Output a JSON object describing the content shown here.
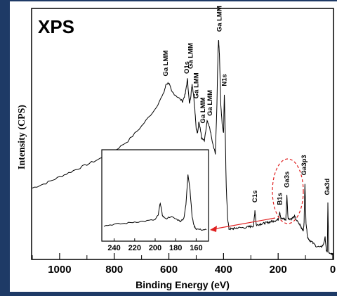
{
  "colors": {
    "background": "#1e3a66",
    "panel": "#ffffff",
    "trace": "#000000",
    "highlight": "#e02020"
  },
  "chart_data": {
    "type": "line",
    "title": "XPS",
    "xlabel": "Binding Energy (eV)",
    "ylabel": "Intensity (CPS)",
    "x_reversed": true,
    "xlim": [
      1100,
      0
    ],
    "ylim": [
      0,
      100
    ],
    "x_ticks": [
      "1000",
      "800",
      "600",
      "400",
      "200",
      "0"
    ],
    "x_tick_values": [
      1000,
      800,
      600,
      400,
      200,
      0
    ],
    "series": [
      {
        "x": [
          1100,
          1050,
          1000,
          950,
          900,
          850,
          800,
          750,
          700,
          650,
          620,
          610,
          600,
          590,
          570,
          550,
          540,
          532,
          525,
          520,
          515,
          510,
          505,
          500,
          495,
          490,
          485,
          480,
          470,
          460,
          450,
          440,
          430,
          425,
          420,
          418,
          415,
          410,
          405,
          400,
          397,
          394,
          390,
          385,
          380,
          370,
          360,
          350,
          330,
          310,
          300,
          290,
          285,
          280,
          270,
          260,
          250,
          240,
          230,
          220,
          210,
          200,
          194,
          190,
          180,
          172,
          168,
          164,
          160,
          150,
          140,
          130,
          120,
          115,
          108,
          105,
          102,
          98,
          92,
          85,
          75,
          60,
          45,
          35,
          28,
          24,
          20,
          18,
          15,
          10,
          5,
          0
        ],
        "y": [
          28,
          30,
          32.5,
          35,
          37.5,
          40,
          43,
          47,
          53,
          60,
          66,
          70,
          70.5,
          67,
          65,
          63,
          66,
          72,
          62,
          65,
          70,
          66,
          60,
          52,
          50,
          55,
          52,
          48,
          47,
          55,
          52,
          46,
          42,
          58,
          84,
          88,
          82,
          62,
          54,
          50,
          66,
          52,
          28,
          16,
          11.5,
          11.5,
          11.7,
          11.9,
          12,
          12.2,
          12.5,
          12.7,
          19,
          13,
          13.3,
          13.6,
          13.8,
          14,
          14.3,
          14.6,
          14.9,
          15.2,
          18.5,
          15.5,
          15.7,
          15,
          25,
          16,
          15.5,
          15.7,
          16.5,
          14.5,
          13,
          12,
          11,
          14,
          30,
          14,
          8,
          7,
          6,
          4.5,
          4,
          5,
          8,
          3,
          2,
          22,
          2,
          1.8,
          1.6,
          1.5
        ]
      }
    ],
    "peak_labels": [
      {
        "label": "Ga LMM",
        "x": 612,
        "y": 72
      },
      {
        "label": "O1s",
        "x": 535,
        "y": 73
      },
      {
        "label": "Ga LMM",
        "x": 520,
        "y": 75
      },
      {
        "label": "Ga LMM",
        "x": 500,
        "y": 63
      },
      {
        "label": "Ga LMM",
        "x": 475,
        "y": 53
      },
      {
        "label": "Ga LMM",
        "x": 450,
        "y": 56
      },
      {
        "label": "Ga LMM",
        "x": 415,
        "y": 90
      },
      {
        "label": "N1s",
        "x": 397,
        "y": 68
      },
      {
        "label": "C1s",
        "x": 285,
        "y": 21
      },
      {
        "label": "B1s",
        "x": 194,
        "y": 20
      },
      {
        "label": "Ga3s",
        "x": 168,
        "y": 27
      },
      {
        "label": "Ga3p3",
        "x": 105,
        "y": 32
      },
      {
        "label": "Ga3d",
        "x": 20,
        "y": 24
      }
    ],
    "inset": {
      "xlim": [
        250,
        150
      ],
      "x_ticks": [
        "240",
        "220",
        "200",
        "180",
        "160"
      ],
      "x_tick_values": [
        240,
        220,
        200,
        180,
        160
      ],
      "x": [
        250,
        240,
        230,
        220,
        210,
        200,
        197,
        195,
        193,
        190,
        185,
        180,
        175,
        172,
        170,
        168,
        166,
        164,
        162,
        160,
        155,
        150
      ],
      "y": [
        8,
        10,
        11,
        13,
        14,
        16,
        22,
        38,
        22,
        17,
        20,
        17,
        14,
        18,
        35,
        75,
        55,
        20,
        8,
        4,
        3,
        3
      ]
    }
  }
}
